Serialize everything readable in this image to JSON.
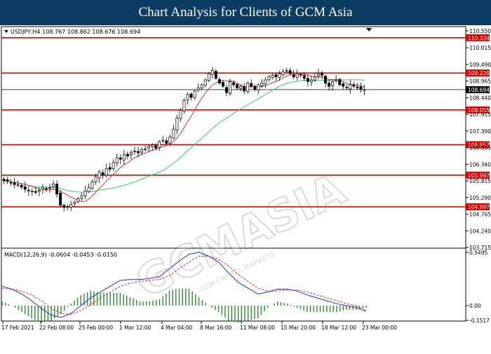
{
  "page": {
    "title": "Chart Analysis for Clients of GCM Asia"
  },
  "main_chart": {
    "symbol_info": "USDJPY,H4  108.767 108.862 108.676 108.694",
    "price_ticks": [
      "110.550",
      "110.015",
      "109.490",
      "108.965",
      "108.440",
      "107.915",
      "107.390",
      "106.865",
      "106.340",
      "105.815",
      "105.290",
      "104.765",
      "104.240",
      "103.715"
    ],
    "levels": [
      "110.334",
      "109.220",
      "108.055",
      "106.957",
      "105.997",
      "104.997"
    ],
    "current_price": "108.694",
    "level_color": "#e00000"
  },
  "indicator": {
    "label": "MACD(12,26,9) -0.0604 -0.0453 -0.0150",
    "ticks": [
      "0.5495",
      "0.00",
      "-0.1517"
    ]
  },
  "time_axis": {
    "labels": [
      "17 Feb 2021",
      "22 Feb 08:00",
      "25 Feb 00:00",
      "1 Mar 12:00",
      "4 Mar 04:00",
      "8 Mar 16:00",
      "11 Mar 08:00",
      "15 Mar 20:00",
      "18 Mar 12:00",
      "23 Mar 00:00"
    ]
  },
  "watermark": {
    "text": "GCMASIA",
    "subtext": "GCM CAPITAL MARKETS"
  },
  "chart_data": {
    "type": "candlestick",
    "symbol": "USDJPY",
    "timeframe": "H4",
    "ohlc_last": {
      "open": 108.767,
      "high": 108.862,
      "low": 108.676,
      "close": 108.694
    },
    "ylim": [
      103.715,
      110.55
    ],
    "levels": [
      110.334,
      109.22,
      108.055,
      106.957,
      105.997,
      104.997
    ],
    "series": [
      {
        "close": [
          105.82,
          105.8,
          105.75,
          105.7,
          105.68,
          105.62,
          105.55,
          105.5,
          105.48,
          105.45,
          105.52,
          105.6,
          105.55,
          105.6,
          105.72,
          105.4,
          105.05,
          104.98,
          105.0,
          105.08,
          105.15,
          105.25,
          105.35,
          105.5,
          105.6,
          105.78,
          105.95,
          106.1,
          106.0,
          106.2,
          106.18,
          106.4,
          106.55,
          106.5,
          106.65,
          106.6,
          106.72,
          106.75,
          106.7,
          106.8,
          106.82,
          106.9,
          106.95,
          106.85,
          107.05,
          107.1,
          107.0,
          107.2,
          107.45,
          107.8,
          108.05,
          108.35,
          108.55,
          108.45,
          108.65,
          108.75,
          108.85,
          109.0,
          109.2,
          109.3,
          109.05,
          108.9,
          108.8,
          108.6,
          108.95,
          108.85,
          108.75,
          108.8,
          108.65,
          108.9,
          108.8,
          108.7,
          108.85,
          108.9,
          109.0,
          109.1,
          109.15,
          109.1,
          109.2,
          109.25,
          109.3,
          109.2,
          109.1,
          109.2,
          109.15,
          109.05,
          108.95,
          109.0,
          109.1,
          109.2,
          109.15,
          108.9,
          108.8,
          108.95,
          109.0,
          108.85,
          108.8,
          108.75,
          108.85,
          108.8,
          108.75,
          108.7,
          108.69
        ]
      },
      {
        "name": "MACD(12,26,9)",
        "values": [
          0.2,
          0.17,
          0.12,
          0.05,
          -0.03,
          -0.1,
          -0.12,
          -0.08,
          0.0,
          0.08,
          0.14,
          0.2,
          0.26,
          0.27,
          0.27,
          0.28,
          0.3,
          0.38,
          0.46,
          0.53,
          0.55,
          0.51,
          0.45,
          0.34,
          0.24,
          0.18,
          0.12,
          0.14,
          0.17,
          0.17,
          0.15,
          0.11,
          0.08,
          0.05,
          0.02,
          0.0,
          -0.02,
          -0.06
        ]
      },
      {
        "name": "Signal",
        "values": [
          0.18,
          0.17,
          0.15,
          0.11,
          0.05,
          -0.03,
          -0.08,
          -0.09,
          -0.05,
          0.01,
          0.08,
          0.14,
          0.2,
          0.23,
          0.25,
          0.26,
          0.27,
          0.31,
          0.38,
          0.45,
          0.51,
          0.51,
          0.48,
          0.41,
          0.32,
          0.25,
          0.18,
          0.15,
          0.15,
          0.16,
          0.16,
          0.14,
          0.11,
          0.08,
          0.05,
          0.02,
          0.0,
          -0.05
        ]
      }
    ]
  }
}
